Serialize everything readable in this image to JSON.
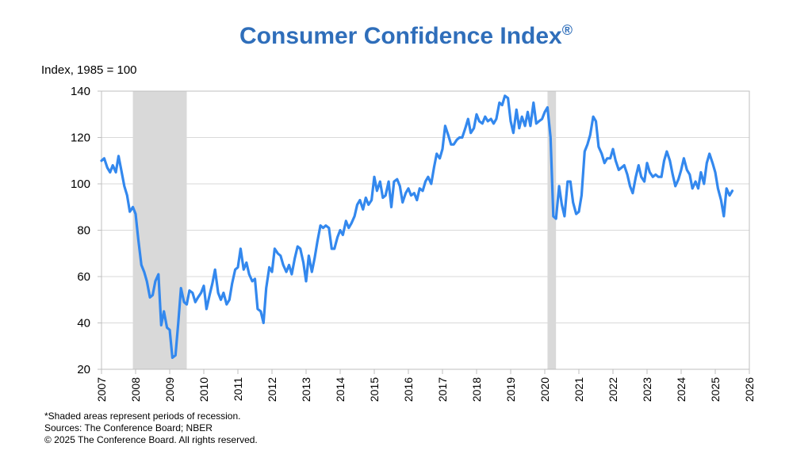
{
  "title": "Consumer Confidence Index",
  "title_mark": "®",
  "ylabel": "Index, 1985 = 100",
  "footnotes": [
    "*Shaded areas represent periods of recession.",
    "Sources:  The Conference Board;  NBER",
    "© 2025 The Conference Board. All rights reserved."
  ],
  "colors": {
    "title": "#2F6EBA",
    "line": "#3388EE",
    "recession": "#D9D9D9",
    "grid": "#D9D9D9"
  },
  "chart_data": {
    "type": "line",
    "xlim": [
      2007,
      2026
    ],
    "ylim": [
      20,
      140
    ],
    "yticks": [
      20,
      40,
      60,
      80,
      100,
      120,
      140
    ],
    "xticks": [
      "2007",
      "2008",
      "2009",
      "2010",
      "2011",
      "2012",
      "2013",
      "2014",
      "2015",
      "2016",
      "2017",
      "2018",
      "2019",
      "2020",
      "2021",
      "2022",
      "2023",
      "2024",
      "2025",
      "2026"
    ],
    "grid": true,
    "recessions": [
      [
        2007.92,
        2009.5
      ],
      [
        2020.08,
        2020.33
      ]
    ],
    "series": [
      {
        "name": "",
        "x": [
          2007.0,
          2007.08,
          2007.17,
          2007.25,
          2007.33,
          2007.42,
          2007.5,
          2007.58,
          2007.67,
          2007.75,
          2007.83,
          2007.92,
          2008.0,
          2008.08,
          2008.17,
          2008.25,
          2008.33,
          2008.42,
          2008.5,
          2008.58,
          2008.67,
          2008.75,
          2008.83,
          2008.92,
          2009.0,
          2009.08,
          2009.17,
          2009.25,
          2009.33,
          2009.42,
          2009.5,
          2009.58,
          2009.67,
          2009.75,
          2009.83,
          2009.92,
          2010.0,
          2010.08,
          2010.17,
          2010.25,
          2010.33,
          2010.42,
          2010.5,
          2010.58,
          2010.67,
          2010.75,
          2010.83,
          2010.92,
          2011.0,
          2011.08,
          2011.17,
          2011.25,
          2011.33,
          2011.42,
          2011.5,
          2011.58,
          2011.67,
          2011.75,
          2011.83,
          2011.92,
          2012.0,
          2012.08,
          2012.17,
          2012.25,
          2012.33,
          2012.42,
          2012.5,
          2012.58,
          2012.67,
          2012.75,
          2012.83,
          2012.92,
          2013.0,
          2013.08,
          2013.17,
          2013.25,
          2013.33,
          2013.42,
          2013.5,
          2013.58,
          2013.67,
          2013.75,
          2013.83,
          2013.92,
          2014.0,
          2014.08,
          2014.17,
          2014.25,
          2014.33,
          2014.42,
          2014.5,
          2014.58,
          2014.67,
          2014.75,
          2014.83,
          2014.92,
          2015.0,
          2015.08,
          2015.17,
          2015.25,
          2015.33,
          2015.42,
          2015.5,
          2015.58,
          2015.67,
          2015.75,
          2015.83,
          2015.92,
          2016.0,
          2016.08,
          2016.17,
          2016.25,
          2016.33,
          2016.42,
          2016.5,
          2016.58,
          2016.67,
          2016.75,
          2016.83,
          2016.92,
          2017.0,
          2017.08,
          2017.17,
          2017.25,
          2017.33,
          2017.42,
          2017.5,
          2017.58,
          2017.67,
          2017.75,
          2017.83,
          2017.92,
          2018.0,
          2018.08,
          2018.17,
          2018.25,
          2018.33,
          2018.42,
          2018.5,
          2018.58,
          2018.67,
          2018.75,
          2018.83,
          2018.92,
          2019.0,
          2019.08,
          2019.17,
          2019.25,
          2019.33,
          2019.42,
          2019.5,
          2019.58,
          2019.67,
          2019.75,
          2019.83,
          2019.92,
          2020.0,
          2020.08,
          2020.17,
          2020.25,
          2020.33,
          2020.42,
          2020.5,
          2020.58,
          2020.67,
          2020.75,
          2020.83,
          2020.92,
          2021.0,
          2021.08,
          2021.17,
          2021.25,
          2021.33,
          2021.42,
          2021.5,
          2021.58,
          2021.67,
          2021.75,
          2021.83,
          2021.92,
          2022.0,
          2022.08,
          2022.17,
          2022.25,
          2022.33,
          2022.42,
          2022.5,
          2022.58,
          2022.67,
          2022.75,
          2022.83,
          2022.92,
          2023.0,
          2023.08,
          2023.17,
          2023.25,
          2023.33,
          2023.42,
          2023.5,
          2023.58,
          2023.67,
          2023.75,
          2023.83,
          2023.92,
          2024.0,
          2024.08,
          2024.17,
          2024.25,
          2024.33,
          2024.42,
          2024.5,
          2024.58,
          2024.67,
          2024.75,
          2024.83,
          2024.92,
          2025.0,
          2025.08,
          2025.17,
          2025.25,
          2025.33,
          2025.42,
          2025.5
        ],
        "y": [
          110,
          111,
          107,
          105,
          108,
          105,
          112,
          106,
          99,
          95,
          88,
          90,
          87,
          76,
          65,
          62,
          58,
          51,
          52,
          58,
          61,
          39,
          45,
          38,
          37,
          25,
          26,
          40,
          55,
          49,
          48,
          54,
          53,
          49,
          51,
          53,
          56,
          46,
          52,
          57,
          63,
          53,
          50,
          53,
          48,
          50,
          57,
          63,
          64,
          72,
          63,
          66,
          61,
          58,
          59,
          46,
          45,
          40,
          55,
          64,
          62,
          72,
          70,
          69,
          65,
          62,
          65,
          61,
          68,
          73,
          72,
          66,
          58,
          69,
          62,
          68,
          75,
          82,
          81,
          82,
          81,
          72,
          72,
          77,
          80,
          78,
          84,
          81,
          83,
          86,
          91,
          93,
          89,
          94,
          91,
          93,
          103,
          97,
          101,
          94,
          95,
          101,
          90,
          101,
          102,
          99,
          92,
          96,
          98,
          95,
          96,
          93,
          98,
          97,
          101,
          103,
          100,
          107,
          113,
          111,
          115,
          125,
          121,
          117,
          117,
          119,
          120,
          120,
          124,
          128,
          122,
          124,
          130,
          127,
          126,
          129,
          127,
          128,
          126,
          128,
          135,
          134,
          138,
          137,
          127,
          122,
          132,
          124,
          129,
          125,
          131,
          125,
          135,
          126,
          127,
          128,
          131,
          133,
          120,
          86,
          85,
          99,
          91,
          86,
          101,
          101,
          92,
          87,
          88,
          95,
          114,
          117,
          121,
          129,
          127,
          116,
          113,
          109,
          111,
          111,
          115,
          110,
          106,
          107,
          108,
          104,
          99,
          96,
          103,
          108,
          103,
          101,
          109,
          105,
          103,
          104,
          103,
          103,
          110,
          114,
          110,
          104,
          99,
          102,
          106,
          111,
          106,
          104,
          98,
          101,
          98,
          105,
          100,
          109,
          113,
          109,
          105,
          98,
          93,
          86,
          98,
          95,
          97
        ]
      }
    ]
  }
}
